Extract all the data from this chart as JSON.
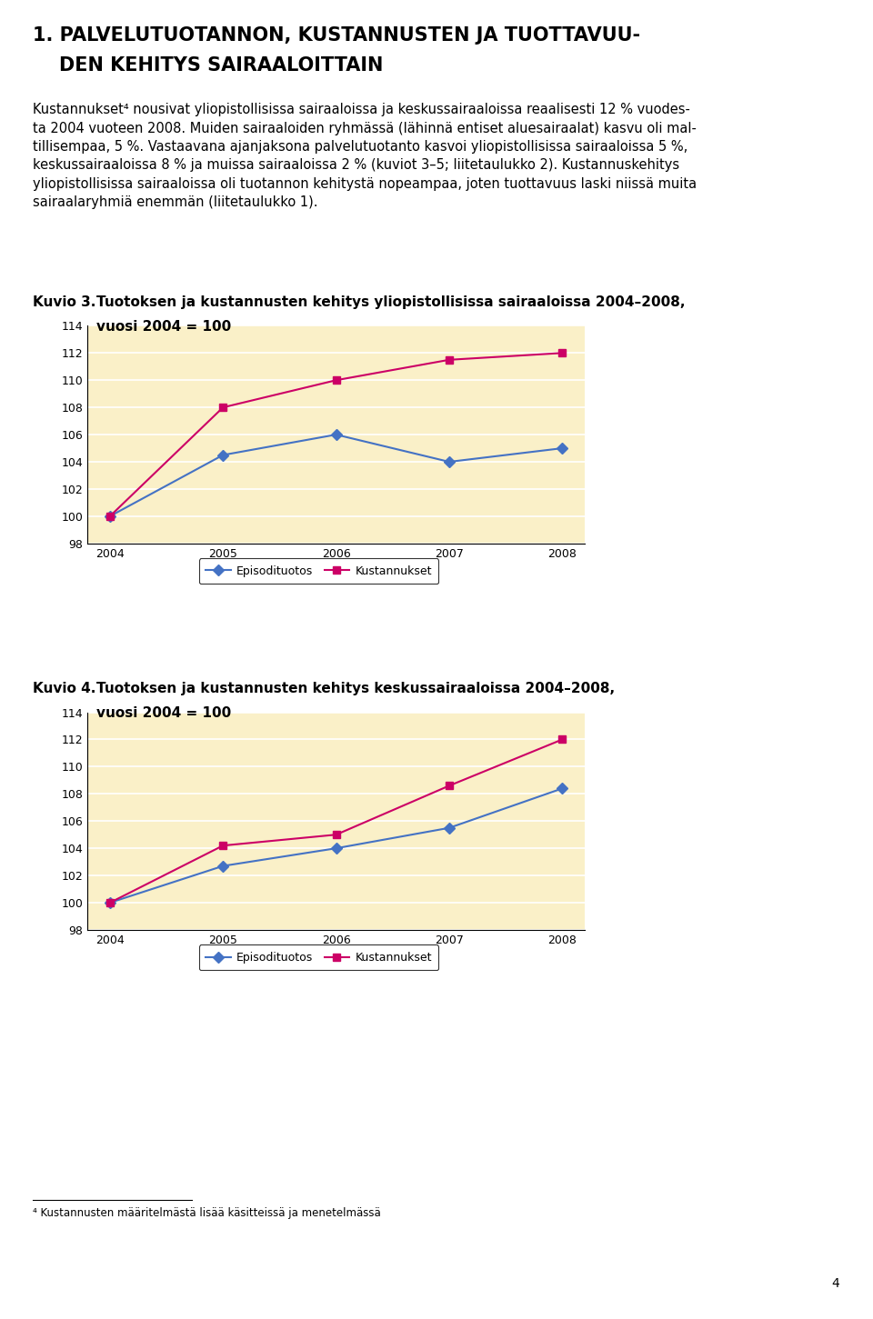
{
  "years": [
    2004,
    2005,
    2006,
    2007,
    2008
  ],
  "chart1_kuvio": "Kuvio 3.",
  "chart1_title1": "Tuotoksen ja kustannusten kehitys yliopistollisissa sairaaloissa 2004–2008,",
  "chart1_title2": "vuosi 2004 = 100",
  "chart1_episodi": [
    100,
    104.5,
    106.0,
    104.0,
    105.0
  ],
  "chart1_kustannus": [
    100,
    108.0,
    110.0,
    111.5,
    112.0
  ],
  "chart2_kuvio": "Kuvio 4.",
  "chart2_title1": "Tuotoksen ja kustannusten kehitys keskussairaaloissa 2004–2008,",
  "chart2_title2": "vuosi 2004 = 100",
  "chart2_episodi": [
    100,
    102.7,
    104.0,
    105.5,
    108.4
  ],
  "chart2_kustannus": [
    100,
    104.2,
    105.0,
    108.6,
    112.0
  ],
  "ylim_min": 98,
  "ylim_max": 114,
  "yticks": [
    98,
    100,
    102,
    104,
    106,
    108,
    110,
    112,
    114
  ],
  "episodi_color": "#4472C4",
  "kustannus_color": "#CC0066",
  "episodi_label": "Episodituotos",
  "kustannus_label": "Kustannukset",
  "bg_color": "#FAF0C8",
  "main_title_line1": "1. PALVELUTUOTANNON, KUSTANNUSTEN JA TUOTTAVUU-",
  "main_title_line2": "    DEN KEHITYS SAIRAALOITTAIN",
  "body_para": "Kustannukset⁴ nousivat yliopistollisissa sairaaloissa ja keskussairaaloissa reaalisesti 12 % vuodes-\nta 2004 vuoteen 2008. Muiden sairaaloiden ryhmässä (lähinnä entiset aluesairaalat) kasvu oli mal-\ntillisempaa, 5 %. Vastaavana ajanjaksona palvelutuotanto kasvoi yliopistollisissa sairaaloissa 5 %,\nkeskussairaaloissa 8 % ja muissa sairaaloissa 2 % (kuviot 3–5; liitetaulukko 2). Kustannuskehitys\nyliopistollisissa sairaaloissa oli tuotannon kehitystä nopeampaa, joten tuottavuus laski niissä muita\nsairaalaryhmiä enemmän (liitetaulukko 1).",
  "footnote": "⁴ Kustannusten määritelmästä lisää käsitteissä ja menetelmässä",
  "page_number": "4",
  "title_fontsize": 15,
  "body_fontsize": 10.5,
  "kuvio_label_fontsize": 11,
  "kuvio_title_fontsize": 11,
  "axis_fontsize": 9,
  "legend_fontsize": 9,
  "footnote_fontsize": 8.5
}
